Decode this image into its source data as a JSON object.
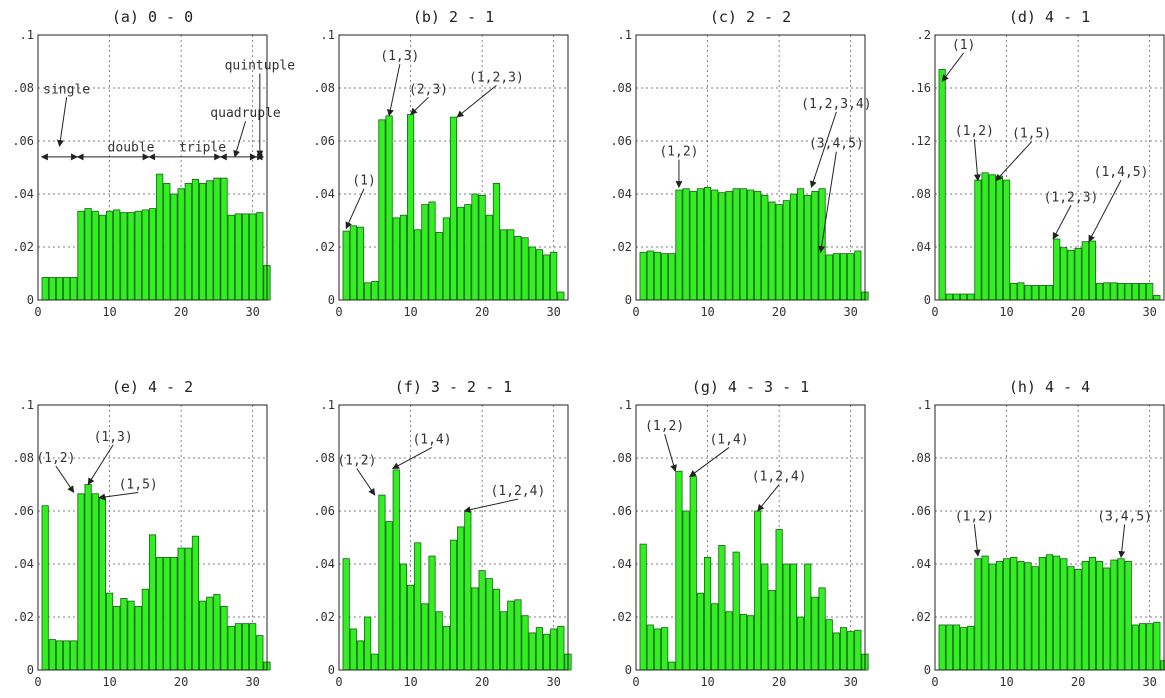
{
  "figure": {
    "bar_color": "#33ee22",
    "bar_edge_color": "#116611"
  },
  "chart_data": [
    {
      "type": "bar",
      "title": "(a) 0 - 0",
      "ylim": [
        0,
        0.1
      ],
      "yticks": [
        0,
        0.02,
        0.04,
        0.06,
        0.08,
        0.1
      ],
      "ytick_labels": [
        "0",
        ".02",
        ".04",
        ".06",
        ".08",
        ".1"
      ],
      "xlim": [
        0,
        32
      ],
      "xticks": [
        0,
        10,
        20,
        30
      ],
      "grid": true,
      "values": [
        0.0085,
        0.0085,
        0.0085,
        0.0085,
        0.0085,
        0.0335,
        0.0345,
        0.0335,
        0.032,
        0.0335,
        0.034,
        0.033,
        0.033,
        0.0335,
        0.034,
        0.0345,
        0.0475,
        0.044,
        0.04,
        0.042,
        0.044,
        0.0455,
        0.044,
        0.045,
        0.046,
        0.046,
        0.032,
        0.0325,
        0.0325,
        0.0325,
        0.033,
        0.013
      ],
      "annotations": [
        {
          "text": "single",
          "x": 4,
          "y": 0.078,
          "tx": 3,
          "ty": 0.058
        },
        {
          "text": "double",
          "x": 13,
          "y": 0.056
        },
        {
          "text": "triple",
          "x": 23,
          "y": 0.056
        },
        {
          "text": "quadruple",
          "x": 29,
          "y": 0.069,
          "tx": 27.5,
          "ty": 0.054
        },
        {
          "text": "quintuple",
          "x": 31,
          "y": 0.087,
          "tx": 31,
          "ty": 0.054
        }
      ],
      "spans": [
        {
          "label": "single",
          "from": 0.5,
          "to": 5.5
        },
        {
          "label": "double",
          "from": 5.5,
          "to": 15.5
        },
        {
          "label": "triple",
          "from": 15.5,
          "to": 25.5
        },
        {
          "label": "quadruple",
          "from": 25.5,
          "to": 30.5
        },
        {
          "label": "quintuple",
          "from": 30.5,
          "to": 31.5
        }
      ]
    },
    {
      "type": "bar",
      "title": "(b) 2 - 1",
      "ylim": [
        0,
        0.1
      ],
      "yticks": [
        0,
        0.02,
        0.04,
        0.06,
        0.08,
        0.1
      ],
      "ytick_labels": [
        "0",
        ".02",
        ".04",
        ".06",
        ".08",
        ".1"
      ],
      "xlim": [
        0,
        32
      ],
      "xticks": [
        0,
        10,
        20,
        30
      ],
      "grid": true,
      "values": [
        0.026,
        0.028,
        0.0275,
        0.0065,
        0.007,
        0.068,
        0.0695,
        0.031,
        0.032,
        0.07,
        0.0265,
        0.036,
        0.037,
        0.0255,
        0.031,
        0.069,
        0.035,
        0.036,
        0.04,
        0.0395,
        0.032,
        0.044,
        0.0265,
        0.0265,
        0.024,
        0.0235,
        0.02,
        0.019,
        0.017,
        0.018,
        0.003,
        0.0
      ],
      "annotations": [
        {
          "text": "(1)",
          "x": 3.5,
          "y": 0.0435,
          "tx": 1,
          "ty": 0.027
        },
        {
          "text": "(1,3)",
          "x": 8.5,
          "y": 0.0905,
          "tx": 7,
          "ty": 0.0695
        },
        {
          "text": "(2,3)",
          "x": 12.5,
          "y": 0.078,
          "tx": 10,
          "ty": 0.07
        },
        {
          "text": "(1,2,3)",
          "x": 22,
          "y": 0.0825,
          "tx": 16.5,
          "ty": 0.069
        }
      ]
    },
    {
      "type": "bar",
      "title": "(c) 2 - 2",
      "ylim": [
        0,
        0.1
      ],
      "yticks": [
        0,
        0.02,
        0.04,
        0.06,
        0.08,
        0.1
      ],
      "ytick_labels": [
        "0",
        ".02",
        ".04",
        ".06",
        ".08",
        ".1"
      ],
      "xlim": [
        0,
        32
      ],
      "xticks": [
        0,
        10,
        20,
        30
      ],
      "grid": true,
      "values": [
        0.018,
        0.0185,
        0.018,
        0.0175,
        0.0175,
        0.0415,
        0.042,
        0.041,
        0.042,
        0.0425,
        0.0415,
        0.0405,
        0.041,
        0.042,
        0.042,
        0.0415,
        0.041,
        0.0395,
        0.037,
        0.036,
        0.0375,
        0.04,
        0.042,
        0.0395,
        0.041,
        0.042,
        0.017,
        0.0175,
        0.0175,
        0.0175,
        0.0185,
        0.003
      ],
      "annotations": [
        {
          "text": "(1,2)",
          "x": 6,
          "y": 0.0545,
          "tx": 6,
          "ty": 0.0425
        },
        {
          "text": "(1,2,3,4)",
          "x": 28,
          "y": 0.0725,
          "tx": 24.5,
          "ty": 0.0425
        },
        {
          "text": "(3,4,5)",
          "x": 28,
          "y": 0.0575,
          "tx": 25.8,
          "ty": 0.018
        }
      ]
    },
    {
      "type": "bar",
      "title": "(d) 4 - 1",
      "ylim": [
        0,
        0.2
      ],
      "yticks": [
        0,
        0.04,
        0.08,
        0.12,
        0.16,
        0.2
      ],
      "ytick_labels": [
        "0",
        ".04",
        ".08",
        ".12",
        ".16",
        ".2"
      ],
      "xlim": [
        0,
        32
      ],
      "xticks": [
        0,
        10,
        20,
        30
      ],
      "grid": true,
      "values": [
        0.174,
        0.0045,
        0.0045,
        0.0045,
        0.0045,
        0.0905,
        0.096,
        0.0945,
        0.0935,
        0.0905,
        0.0125,
        0.013,
        0.011,
        0.011,
        0.011,
        0.011,
        0.046,
        0.0395,
        0.0375,
        0.039,
        0.044,
        0.0445,
        0.0125,
        0.013,
        0.013,
        0.0125,
        0.0125,
        0.0125,
        0.0125,
        0.0125,
        0.0035,
        0.0
      ],
      "annotations": [
        {
          "text": "(1)",
          "x": 4,
          "y": 0.1895,
          "tx": 1,
          "ty": 0.165
        },
        {
          "text": "(1,2)",
          "x": 5.5,
          "y": 0.1245,
          "tx": 6,
          "ty": 0.09
        },
        {
          "text": "(1,5)",
          "x": 13.5,
          "y": 0.1225,
          "tx": 8.5,
          "ty": 0.09
        },
        {
          "text": "(1,2,3)",
          "x": 19,
          "y": 0.0745,
          "tx": 16.5,
          "ty": 0.046
        },
        {
          "text": "(1,4,5)",
          "x": 26,
          "y": 0.0935,
          "tx": 21.5,
          "ty": 0.044
        }
      ]
    },
    {
      "type": "bar",
      "title": "(e) 4 - 2",
      "ylim": [
        0,
        0.1
      ],
      "yticks": [
        0,
        0.02,
        0.04,
        0.06,
        0.08,
        0.1
      ],
      "ytick_labels": [
        "0",
        ".02",
        ".04",
        ".06",
        ".08",
        ".1"
      ],
      "xlim": [
        0,
        32
      ],
      "xticks": [
        0,
        10,
        20,
        30
      ],
      "grid": true,
      "values": [
        0.062,
        0.0115,
        0.011,
        0.011,
        0.011,
        0.0665,
        0.07,
        0.0665,
        0.065,
        0.029,
        0.024,
        0.027,
        0.026,
        0.024,
        0.0305,
        0.051,
        0.0425,
        0.0425,
        0.0425,
        0.046,
        0.046,
        0.0505,
        0.026,
        0.0275,
        0.0285,
        0.024,
        0.0165,
        0.0175,
        0.0175,
        0.0175,
        0.013,
        0.003
      ],
      "annotations": [
        {
          "text": "(1,2)",
          "x": 2.5,
          "y": 0.0785,
          "tx": 5,
          "ty": 0.067
        },
        {
          "text": "(1,3)",
          "x": 10.5,
          "y": 0.0865,
          "tx": 7,
          "ty": 0.07
        },
        {
          "text": "(1,5)",
          "x": 14,
          "y": 0.0685,
          "tx": 8.5,
          "ty": 0.065
        }
      ]
    },
    {
      "type": "bar",
      "title": "(f) 3 - 2 - 1",
      "ylim": [
        0,
        0.1
      ],
      "yticks": [
        0,
        0.02,
        0.04,
        0.06,
        0.08,
        0.1
      ],
      "ytick_labels": [
        "0",
        ".02",
        ".04",
        ".06",
        ".08",
        ".1"
      ],
      "xlim": [
        0,
        32
      ],
      "xticks": [
        0,
        10,
        20,
        30
      ],
      "grid": true,
      "values": [
        0.042,
        0.0155,
        0.011,
        0.02,
        0.006,
        0.066,
        0.056,
        0.0755,
        0.04,
        0.032,
        0.048,
        0.025,
        0.043,
        0.022,
        0.0165,
        0.049,
        0.054,
        0.06,
        0.031,
        0.0375,
        0.0345,
        0.0305,
        0.022,
        0.026,
        0.0265,
        0.0205,
        0.014,
        0.016,
        0.0135,
        0.0155,
        0.0165,
        0.006
      ],
      "annotations": [
        {
          "text": "(1,2)",
          "x": 2.5,
          "y": 0.0775,
          "tx": 5,
          "ty": 0.066
        },
        {
          "text": "(1,4)",
          "x": 13,
          "y": 0.0855,
          "tx": 7.5,
          "ty": 0.076
        },
        {
          "text": "(1,2,4)",
          "x": 25,
          "y": 0.066,
          "tx": 17.5,
          "ty": 0.06
        }
      ]
    },
    {
      "type": "bar",
      "title": "(g) 4 - 3 - 1",
      "ylim": [
        0,
        0.1
      ],
      "yticks": [
        0,
        0.02,
        0.04,
        0.06,
        0.08,
        0.1
      ],
      "ytick_labels": [
        "0",
        ".02",
        ".04",
        ".06",
        ".08",
        ".1"
      ],
      "xlim": [
        0,
        32
      ],
      "xticks": [
        0,
        10,
        20,
        30
      ],
      "grid": true,
      "values": [
        0.0475,
        0.017,
        0.0155,
        0.016,
        0.003,
        0.075,
        0.06,
        0.073,
        0.029,
        0.0425,
        0.025,
        0.047,
        0.022,
        0.0445,
        0.021,
        0.0205,
        0.06,
        0.04,
        0.03,
        0.053,
        0.04,
        0.04,
        0.02,
        0.04,
        0.0275,
        0.031,
        0.019,
        0.014,
        0.016,
        0.0145,
        0.015,
        0.006
      ],
      "annotations": [
        {
          "text": "(1,2)",
          "x": 4,
          "y": 0.0905,
          "tx": 5.5,
          "ty": 0.075
        },
        {
          "text": "(1,4)",
          "x": 13,
          "y": 0.0855,
          "tx": 7.5,
          "ty": 0.073
        },
        {
          "text": "(1,2,4)",
          "x": 20,
          "y": 0.0715,
          "tx": 17,
          "ty": 0.06
        }
      ]
    },
    {
      "type": "bar",
      "title": "(h) 4 - 4",
      "ylim": [
        0,
        0.1
      ],
      "yticks": [
        0,
        0.02,
        0.04,
        0.06,
        0.08,
        0.1
      ],
      "ytick_labels": [
        "0",
        ".02",
        ".04",
        ".06",
        ".08",
        ".1"
      ],
      "xlim": [
        0,
        32
      ],
      "xticks": [
        0,
        10,
        20,
        30
      ],
      "grid": true,
      "values": [
        0.017,
        0.017,
        0.017,
        0.016,
        0.0165,
        0.042,
        0.043,
        0.04,
        0.041,
        0.042,
        0.0425,
        0.041,
        0.0405,
        0.039,
        0.0425,
        0.0435,
        0.043,
        0.042,
        0.039,
        0.038,
        0.041,
        0.0425,
        0.041,
        0.0385,
        0.0415,
        0.042,
        0.041,
        0.017,
        0.0175,
        0.0175,
        0.018,
        0.0035
      ],
      "annotations": [
        {
          "text": "(1,2)",
          "x": 5.5,
          "y": 0.0565,
          "tx": 6,
          "ty": 0.043
        },
        {
          "text": "(3,4,5)",
          "x": 26.5,
          "y": 0.0565,
          "tx": 26,
          "ty": 0.0425
        }
      ]
    }
  ]
}
